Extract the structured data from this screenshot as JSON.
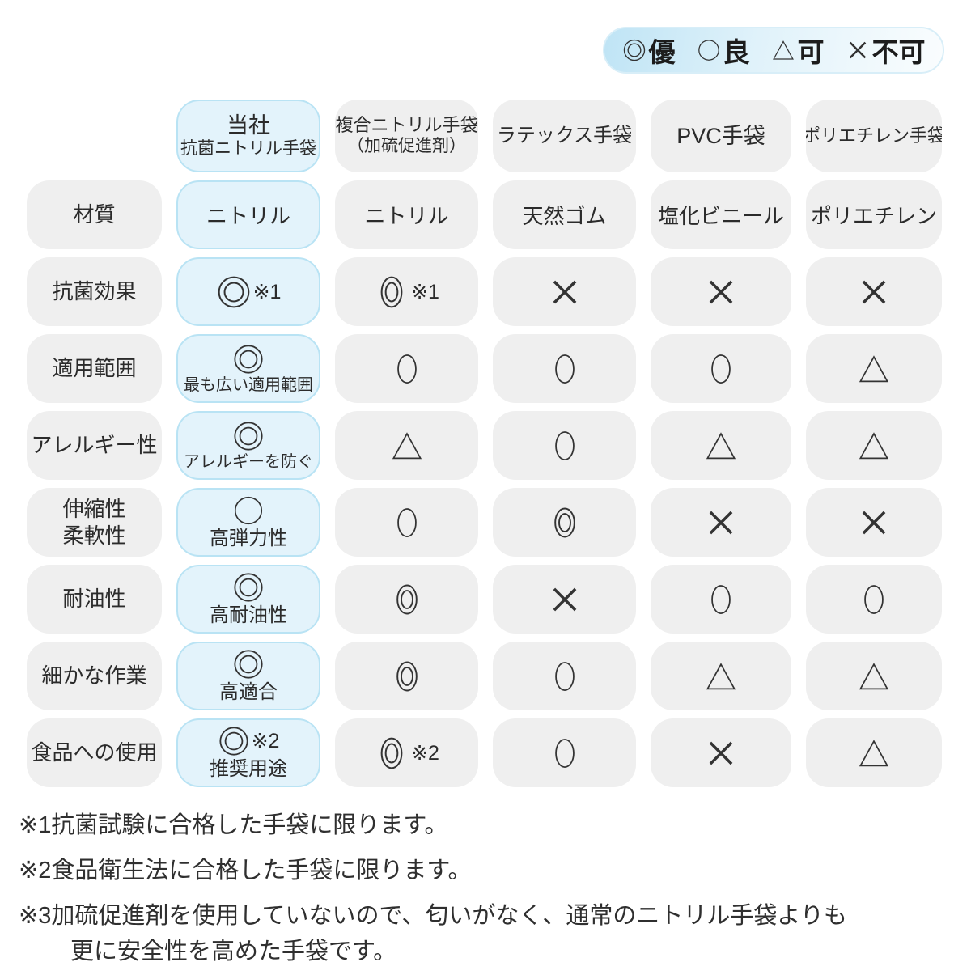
{
  "legend": {
    "items": [
      {
        "kind": "excellent",
        "label": "優"
      },
      {
        "kind": "good",
        "label": "良"
      },
      {
        "kind": "fair",
        "label": "可"
      },
      {
        "kind": "poor",
        "label": "不可"
      }
    ]
  },
  "table": {
    "columns": [
      {
        "title": "当社",
        "subtitle": "抗菌ニトリル手袋",
        "highlight": true
      },
      {
        "title": "複合ニトリル手袋",
        "subtitle": "（加硫促進剤）",
        "highlight": false
      },
      {
        "title": "ラテックス手袋",
        "highlight": false
      },
      {
        "title": "PVC手袋",
        "highlight": false
      },
      {
        "title": "ポリエチレン手袋",
        "highlight": false
      }
    ],
    "rows": [
      {
        "label_lines": [
          "材質"
        ],
        "cells": [
          {
            "text": "ニトリル"
          },
          {
            "text": "ニトリル"
          },
          {
            "text": "天然ゴム"
          },
          {
            "text": "塩化ビニール"
          },
          {
            "text": "ポリエチレン"
          }
        ]
      },
      {
        "label_lines": [
          "抗菌効果"
        ],
        "cells": [
          {
            "symbol": "excellent",
            "note": "※1"
          },
          {
            "symbol": "excellent",
            "note": "※1"
          },
          {
            "symbol": "poor"
          },
          {
            "symbol": "poor"
          },
          {
            "symbol": "poor"
          }
        ]
      },
      {
        "label_lines": [
          "適用範囲"
        ],
        "cells": [
          {
            "symbol": "excellent",
            "caption": "最も広い適用範囲"
          },
          {
            "symbol": "good"
          },
          {
            "symbol": "good"
          },
          {
            "symbol": "good"
          },
          {
            "symbol": "fair"
          }
        ]
      },
      {
        "label_lines": [
          "アレルギー性"
        ],
        "cells": [
          {
            "symbol": "excellent",
            "caption": "アレルギーを防ぐ"
          },
          {
            "symbol": "fair"
          },
          {
            "symbol": "good"
          },
          {
            "symbol": "fair"
          },
          {
            "symbol": "fair"
          }
        ]
      },
      {
        "label_lines": [
          "伸縮性",
          "柔軟性"
        ],
        "cells": [
          {
            "symbol": "good",
            "caption": "高弾力性"
          },
          {
            "symbol": "good"
          },
          {
            "symbol": "excellent"
          },
          {
            "symbol": "poor"
          },
          {
            "symbol": "poor"
          }
        ]
      },
      {
        "label_lines": [
          "耐油性"
        ],
        "cells": [
          {
            "symbol": "excellent",
            "caption": "高耐油性"
          },
          {
            "symbol": "excellent"
          },
          {
            "symbol": "poor"
          },
          {
            "symbol": "good"
          },
          {
            "symbol": "good"
          }
        ]
      },
      {
        "label_lines": [
          "細かな作業"
        ],
        "cells": [
          {
            "symbol": "excellent",
            "caption": "高適合"
          },
          {
            "symbol": "excellent"
          },
          {
            "symbol": "good"
          },
          {
            "symbol": "fair"
          },
          {
            "symbol": "fair"
          }
        ]
      },
      {
        "label_lines": [
          "食品への使用"
        ],
        "cells": [
          {
            "symbol": "excellent",
            "note": "※2",
            "caption": "推奨用途"
          },
          {
            "symbol": "excellent",
            "note": "※2"
          },
          {
            "symbol": "good"
          },
          {
            "symbol": "poor"
          },
          {
            "symbol": "fair"
          }
        ]
      }
    ]
  },
  "footnotes": [
    {
      "lines": [
        "※1抗菌試験に合格した手袋に限ります。"
      ]
    },
    {
      "lines": [
        "※2食品衛生法に合格した手袋に限ります。"
      ]
    },
    {
      "lines": [
        "※3加硫促進剤を使用していないので、匂いがなく、通常のニトリル手袋よりも",
        "更に安全性を高めた手袋です。"
      ]
    }
  ],
  "colors": {
    "highlight_fill": "#e3f3fb",
    "highlight_border": "#b9e3f4",
    "pill_gray": "#efefef",
    "legend_gradient_start": "#bfe4f5",
    "legend_gradient_end": "#fafdfe",
    "text": "#2f2f2f",
    "symbol": "#333333"
  },
  "chart_data": {
    "type": "table",
    "legend": {
      "◎": "優",
      "○": "良",
      "△": "可",
      "×": "不可"
    },
    "columns": [
      "当社 抗菌ニトリル手袋",
      "複合ニトリル手袋（加硫促進剤）",
      "ラテックス手袋",
      "PVC手袋",
      "ポリエチレン手袋"
    ],
    "rows": [
      {
        "label": "材質",
        "values": [
          "ニトリル",
          "ニトリル",
          "天然ゴム",
          "塩化ビニール",
          "ポリエチレン"
        ]
      },
      {
        "label": "抗菌効果",
        "values": [
          "◎※1",
          "◎※1",
          "×",
          "×",
          "×"
        ]
      },
      {
        "label": "適用範囲",
        "values": [
          "◎ 最も広い適用範囲",
          "○",
          "○",
          "○",
          "△"
        ]
      },
      {
        "label": "アレルギー性",
        "values": [
          "◎ アレルギーを防ぐ",
          "△",
          "○",
          "△",
          "△"
        ]
      },
      {
        "label": "伸縮性・柔軟性",
        "values": [
          "○ 高弾力性",
          "○",
          "◎",
          "×",
          "×"
        ]
      },
      {
        "label": "耐油性",
        "values": [
          "◎ 高耐油性",
          "◎",
          "×",
          "○",
          "○"
        ]
      },
      {
        "label": "細かな作業",
        "values": [
          "◎ 高適合",
          "◎",
          "○",
          "△",
          "△"
        ]
      },
      {
        "label": "食品への使用",
        "values": [
          "◎※2 推奨用途",
          "◎※2",
          "○",
          "×",
          "△"
        ]
      }
    ],
    "footnotes": [
      "※1抗菌試験に合格した手袋に限ります。",
      "※2食品衛生法に合格した手袋に限ります。",
      "※3加硫促進剤を使用していないので、匂いがなく、通常のニトリル手袋よりも更に安全性を高めた手袋です。"
    ]
  }
}
